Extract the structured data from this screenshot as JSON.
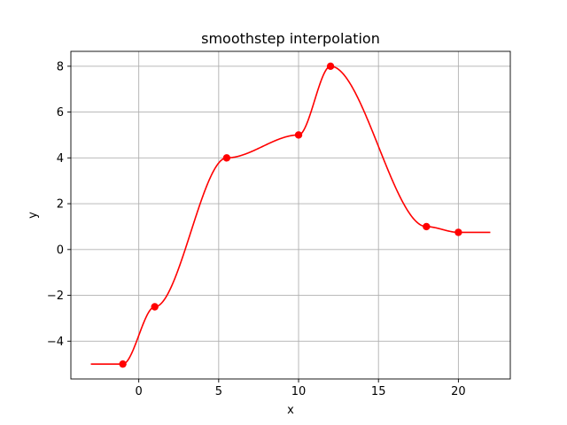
{
  "chart_data": {
    "type": "line",
    "title": "smoothstep interpolation",
    "xlabel": "x",
    "ylabel": "y",
    "xlim": [
      -4.25,
      23.25
    ],
    "ylim": [
      -5.65,
      8.65
    ],
    "xticks": [
      0,
      5,
      10,
      15,
      20
    ],
    "yticks": [
      -4,
      -2,
      0,
      2,
      4,
      6,
      8
    ],
    "grid": true,
    "extrapolate_x": [
      -3,
      22
    ],
    "interpolation": "smoothstep",
    "series": [
      {
        "color": "#ff0000",
        "x": [
          -1,
          1,
          5.5,
          10,
          12,
          18,
          20
        ],
        "y": [
          -5,
          -2.5,
          4,
          5,
          8,
          1,
          0.75
        ]
      }
    ]
  }
}
